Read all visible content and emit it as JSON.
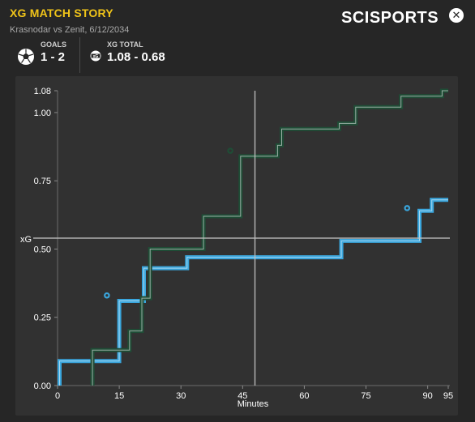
{
  "header": {
    "title": "XG MATCH STORY",
    "subtitle": "Krasnodar vs Zenit, 6/12/2034",
    "brand": "SCISPORTS",
    "close_symbol": "✕"
  },
  "stats": {
    "goals_label": "GOALS",
    "goals_value": "1 - 2",
    "xg_label": "XG TOTAL",
    "xg_value": "1.08 - 0.68",
    "goals_icon": "football-icon",
    "xg_icon": "xg-ball-icon"
  },
  "colors": {
    "title": "#f0c419",
    "krasnodar": "#1f4d36",
    "zenit": "#3aa6dd",
    "background": "#262626",
    "panel": "#313131"
  },
  "chart_data": {
    "type": "line",
    "step": true,
    "xlabel": "Minutes",
    "ylabel": "xG",
    "xlim": [
      0,
      95
    ],
    "ylim": [
      0,
      1.08
    ],
    "xticks": [
      0,
      15,
      30,
      45,
      60,
      75,
      90,
      95
    ],
    "yticks": [
      0.0,
      0.25,
      0.5,
      0.75,
      1.0,
      1.08
    ],
    "ytick_labels": [
      "0.00",
      "0.25",
      "0.50",
      "0.75",
      "1.00",
      "1.08"
    ],
    "crosshair": {
      "x": 48,
      "y": 0.54
    },
    "series": [
      {
        "name": "Krasnodar",
        "color": "#1f4d36",
        "points": [
          [
            8.5,
            0
          ],
          [
            8.5,
            0.13
          ],
          [
            17.5,
            0.13
          ],
          [
            17.5,
            0.2
          ],
          [
            20.5,
            0.2
          ],
          [
            20.5,
            0.32
          ],
          [
            22.5,
            0.32
          ],
          [
            22.5,
            0.5
          ],
          [
            35.5,
            0.5
          ],
          [
            35.5,
            0.62
          ],
          [
            44.5,
            0.62
          ],
          [
            44.5,
            0.84
          ],
          [
            53.5,
            0.84
          ],
          [
            53.5,
            0.88
          ],
          [
            54.5,
            0.88
          ],
          [
            54.5,
            0.94
          ],
          [
            68.5,
            0.94
          ],
          [
            68.5,
            0.96
          ],
          [
            72.5,
            0.96
          ],
          [
            72.5,
            1.02
          ],
          [
            83.5,
            1.02
          ],
          [
            83.5,
            1.06
          ],
          [
            93.5,
            1.06
          ],
          [
            93.5,
            1.08
          ],
          [
            95,
            1.08
          ]
        ],
        "goals": [
          [
            42,
            0.86
          ]
        ]
      },
      {
        "name": "Zenit",
        "color": "#3aa6dd",
        "points": [
          [
            0.5,
            0
          ],
          [
            0.5,
            0.09
          ],
          [
            15,
            0.09
          ],
          [
            15,
            0.31
          ],
          [
            21,
            0.31
          ],
          [
            21,
            0.43
          ],
          [
            31.5,
            0.43
          ],
          [
            31.5,
            0.47
          ],
          [
            69,
            0.47
          ],
          [
            69,
            0.53
          ],
          [
            88,
            0.53
          ],
          [
            88,
            0.64
          ],
          [
            91,
            0.64
          ],
          [
            91,
            0.68
          ],
          [
            95,
            0.68
          ]
        ],
        "goals": [
          [
            12,
            0.33
          ],
          [
            85,
            0.65
          ]
        ]
      }
    ]
  }
}
